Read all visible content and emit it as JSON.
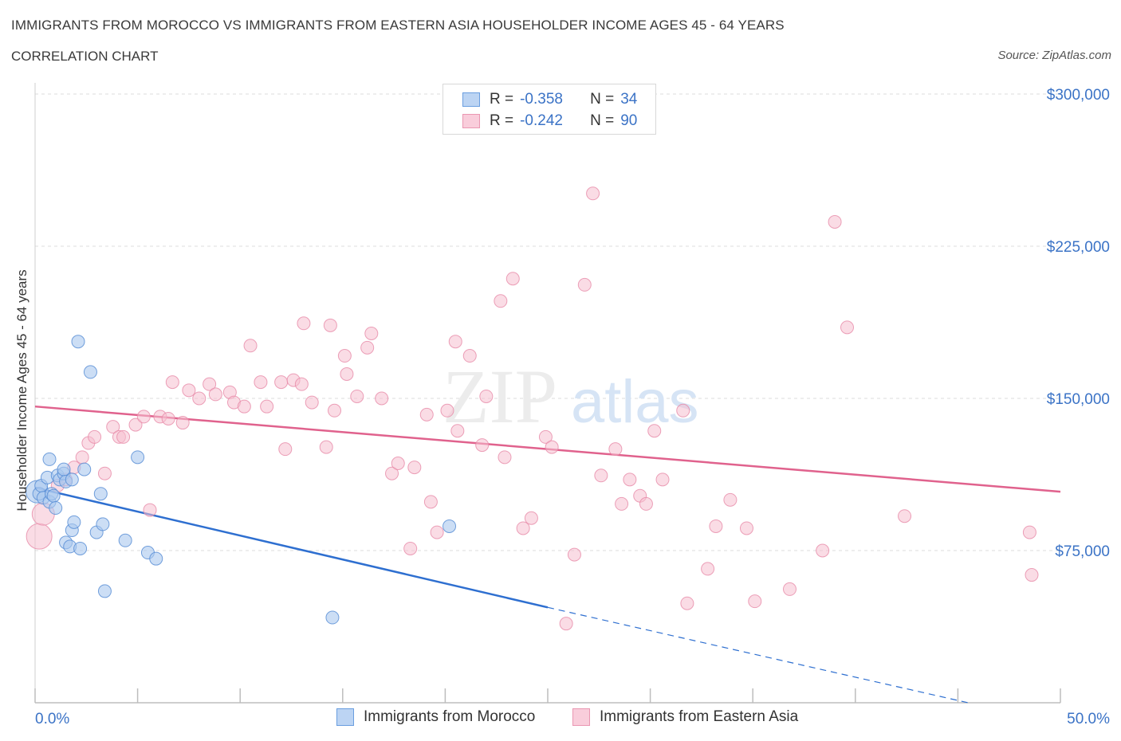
{
  "header": {
    "title": "IMMIGRANTS FROM MOROCCO VS IMMIGRANTS FROM EASTERN ASIA HOUSEHOLDER INCOME AGES 45 - 64 YEARS",
    "subtitle": "CORRELATION CHART",
    "source": "Source: ZipAtlas.com"
  },
  "watermark": {
    "zip": "ZIP",
    "atlas": "atlas"
  },
  "legend": {
    "rows": [
      {
        "r_label": "R =",
        "r_value": "-0.358",
        "n_label": "N =",
        "n_value": "34"
      },
      {
        "r_label": "R =",
        "r_value": "-0.242",
        "n_label": "N =",
        "n_value": "90"
      }
    ]
  },
  "bottom_legend": {
    "morocco": "Immigrants from Morocco",
    "eastern_asia": "Immigrants from Eastern Asia"
  },
  "colors": {
    "morocco_fill": "#aac8ef",
    "morocco_stroke": "#5b8fd6",
    "morocco_line": "#2e6fd0",
    "asia_fill": "#f6bfd0",
    "asia_stroke": "#e78aa8",
    "asia_line": "#e0628d",
    "grid": "#dcdcdc",
    "axis_text": "#3b73c6"
  },
  "chart_data": {
    "type": "scatter",
    "title": "IMMIGRANTS FROM MOROCCO VS IMMIGRANTS FROM EASTERN ASIA HOUSEHOLDER INCOME AGES 45 - 64 YEARS",
    "xlabel": "",
    "ylabel": "Householder Income Ages 45 - 64 years",
    "xlim": [
      0,
      50
    ],
    "ylim": [
      0,
      300000
    ],
    "x_tick_labels": [
      "0.0%",
      "50.0%"
    ],
    "y_ticks": [
      75000,
      150000,
      225000,
      300000
    ],
    "y_tick_labels": [
      "$75,000",
      "$150,000",
      "$225,000",
      "$300,000"
    ],
    "grid": true,
    "legend_position": "top-center",
    "series": [
      {
        "name": "Immigrants from Morocco",
        "r": -0.358,
        "n": 34,
        "trend": {
          "x0": 0,
          "y0": 106000,
          "x1": 25,
          "y1": 47000,
          "dash_to_x": 45.5,
          "dash_to_y": 0
        },
        "points": [
          [
            0.1,
            104000,
            14
          ],
          [
            0.2,
            103000,
            8
          ],
          [
            0.3,
            107000,
            8
          ],
          [
            0.4,
            101000,
            8
          ],
          [
            0.6,
            111000,
            8
          ],
          [
            0.7,
            99000,
            8
          ],
          [
            0.7,
            120000,
            8
          ],
          [
            0.8,
            103000,
            8
          ],
          [
            0.9,
            102000,
            8
          ],
          [
            1.0,
            96000,
            8
          ],
          [
            1.1,
            112000,
            8
          ],
          [
            1.2,
            110000,
            8
          ],
          [
            1.4,
            113000,
            8
          ],
          [
            1.4,
            115000,
            8
          ],
          [
            1.5,
            79000,
            8
          ],
          [
            1.5,
            109000,
            8
          ],
          [
            1.7,
            77000,
            8
          ],
          [
            1.8,
            85000,
            8
          ],
          [
            1.8,
            110000,
            8
          ],
          [
            1.9,
            89000,
            8
          ],
          [
            2.1,
            178000,
            8
          ],
          [
            2.2,
            76000,
            8
          ],
          [
            2.4,
            115000,
            8
          ],
          [
            2.7,
            163000,
            8
          ],
          [
            3.0,
            84000,
            8
          ],
          [
            3.2,
            103000,
            8
          ],
          [
            3.3,
            88000,
            8
          ],
          [
            3.4,
            55000,
            8
          ],
          [
            4.4,
            80000,
            8
          ],
          [
            5.0,
            121000,
            8
          ],
          [
            5.5,
            74000,
            8
          ],
          [
            5.9,
            71000,
            8
          ],
          [
            14.5,
            42000,
            8
          ],
          [
            20.2,
            87000,
            8
          ]
        ]
      },
      {
        "name": "Immigrants from Eastern Asia",
        "r": -0.242,
        "n": 90,
        "trend": {
          "x0": 0,
          "y0": 146000,
          "x1": 50,
          "y1": 104000
        },
        "points": [
          [
            0.2,
            82000,
            16
          ],
          [
            0.4,
            93000,
            14
          ],
          [
            1.1,
            107000,
            8
          ],
          [
            1.5,
            110000,
            8
          ],
          [
            1.9,
            116000,
            8
          ],
          [
            2.3,
            121000,
            8
          ],
          [
            2.6,
            128000,
            8
          ],
          [
            2.9,
            131000,
            8
          ],
          [
            3.4,
            113000,
            8
          ],
          [
            3.8,
            136000,
            8
          ],
          [
            4.1,
            131000,
            8
          ],
          [
            4.3,
            131000,
            8
          ],
          [
            4.9,
            137000,
            8
          ],
          [
            5.3,
            141000,
            8
          ],
          [
            5.6,
            95000,
            8
          ],
          [
            6.7,
            158000,
            8
          ],
          [
            6.1,
            141000,
            8
          ],
          [
            6.5,
            140000,
            8
          ],
          [
            7.2,
            138000,
            8
          ],
          [
            7.5,
            154000,
            8
          ],
          [
            8.0,
            150000,
            8
          ],
          [
            8.5,
            157000,
            8
          ],
          [
            8.8,
            152000,
            8
          ],
          [
            9.5,
            153000,
            8
          ],
          [
            9.7,
            148000,
            8
          ],
          [
            10.2,
            146000,
            8
          ],
          [
            10.5,
            176000,
            8
          ],
          [
            11.0,
            158000,
            8
          ],
          [
            11.3,
            146000,
            8
          ],
          [
            12.0,
            158000,
            8
          ],
          [
            12.2,
            125000,
            8
          ],
          [
            12.6,
            159000,
            8
          ],
          [
            13.0,
            157000,
            8
          ],
          [
            13.1,
            187000,
            8
          ],
          [
            13.5,
            148000,
            8
          ],
          [
            14.2,
            126000,
            8
          ],
          [
            14.4,
            186000,
            8
          ],
          [
            14.6,
            144000,
            8
          ],
          [
            15.1,
            171000,
            8
          ],
          [
            15.2,
            162000,
            8
          ],
          [
            15.7,
            151000,
            8
          ],
          [
            16.2,
            175000,
            8
          ],
          [
            16.4,
            182000,
            8
          ],
          [
            16.9,
            150000,
            8
          ],
          [
            17.4,
            113000,
            8
          ],
          [
            17.7,
            118000,
            8
          ],
          [
            18.3,
            76000,
            8
          ],
          [
            18.5,
            116000,
            8
          ],
          [
            19.1,
            142000,
            8
          ],
          [
            19.3,
            99000,
            8
          ],
          [
            19.6,
            84000,
            8
          ],
          [
            20.1,
            144000,
            8
          ],
          [
            20.5,
            178000,
            8
          ],
          [
            20.6,
            134000,
            8
          ],
          [
            21.2,
            171000,
            8
          ],
          [
            21.8,
            127000,
            8
          ],
          [
            22.0,
            151000,
            8
          ],
          [
            22.7,
            198000,
            8
          ],
          [
            22.9,
            121000,
            8
          ],
          [
            23.3,
            209000,
            8
          ],
          [
            23.8,
            86000,
            8
          ],
          [
            24.2,
            91000,
            8
          ],
          [
            24.9,
            131000,
            8
          ],
          [
            25.2,
            126000,
            8
          ],
          [
            25.9,
            39000,
            8
          ],
          [
            26.3,
            73000,
            8
          ],
          [
            26.8,
            206000,
            8
          ],
          [
            27.2,
            251000,
            8
          ],
          [
            27.6,
            112000,
            8
          ],
          [
            28.3,
            125000,
            8
          ],
          [
            28.6,
            98000,
            8
          ],
          [
            29.0,
            110000,
            8
          ],
          [
            29.5,
            102000,
            8
          ],
          [
            29.8,
            98000,
            8
          ],
          [
            30.2,
            134000,
            8
          ],
          [
            30.6,
            110000,
            8
          ],
          [
            31.6,
            144000,
            8
          ],
          [
            31.8,
            49000,
            8
          ],
          [
            32.8,
            66000,
            8
          ],
          [
            33.2,
            87000,
            8
          ],
          [
            33.9,
            100000,
            8
          ],
          [
            34.7,
            86000,
            8
          ],
          [
            35.1,
            50000,
            8
          ],
          [
            36.8,
            56000,
            8
          ],
          [
            38.4,
            75000,
            8
          ],
          [
            39.0,
            237000,
            8
          ],
          [
            39.6,
            185000,
            8
          ],
          [
            42.4,
            92000,
            8
          ],
          [
            48.5,
            84000,
            8
          ],
          [
            48.6,
            63000,
            8
          ]
        ]
      }
    ]
  }
}
